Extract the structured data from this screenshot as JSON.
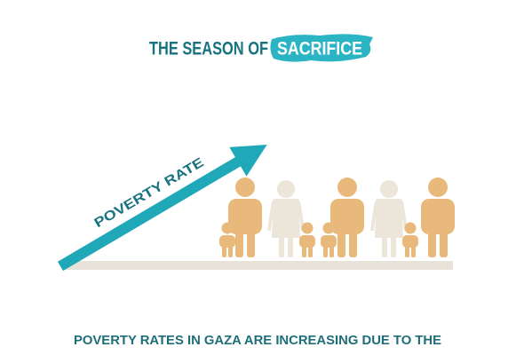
{
  "header": {
    "title_prefix": "THE SEASON OF",
    "title_highlight": "SACRIFICE"
  },
  "graphic": {
    "arrow_label": "POVERTY RATE"
  },
  "caption": "POVERTY RATES IN GAZA ARE INCREASING DUE TO THE"
}
